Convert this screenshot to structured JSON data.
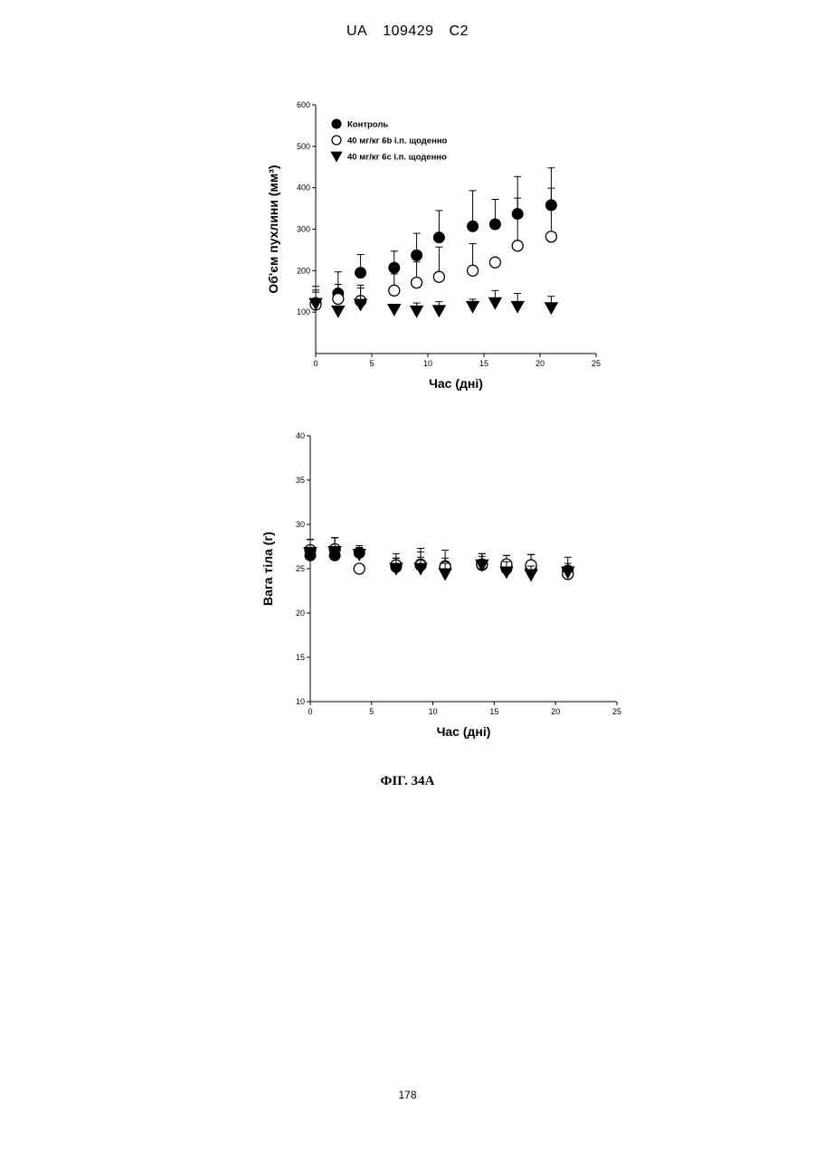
{
  "header": {
    "office": "UA",
    "number": "109429",
    "kind": "C2"
  },
  "figure_caption": "ФІГ. 34А",
  "page_number": "178",
  "chart_data": [
    {
      "type": "scatter",
      "title": "",
      "xlabel": "Час (дні)",
      "ylabel": "Об'єм пухлини (мм³)",
      "xlim": [
        0,
        25
      ],
      "ylim": [
        0,
        600
      ],
      "x_ticks": [
        "0",
        "5",
        "10",
        "15",
        "20",
        "25"
      ],
      "y_ticks": [
        "100",
        "200",
        "300",
        "400",
        "500",
        "600"
      ],
      "grid": false,
      "legend_position": "top-left",
      "series": [
        {
          "name": "Контроль",
          "marker": "filled-circle",
          "x": [
            0,
            2,
            4,
            7,
            9,
            11,
            14,
            16,
            18,
            21
          ],
          "y": [
            122,
            145,
            195,
            207,
            237,
            280,
            307,
            312,
            337,
            358
          ],
          "err": [
            40,
            52,
            44,
            40,
            53,
            65,
            86,
            60,
            90,
            90
          ]
        },
        {
          "name": "40 мг/кг 6b i.п. щоденно",
          "marker": "open-circle",
          "x": [
            0,
            2,
            4,
            7,
            9,
            11,
            14,
            16,
            18,
            21
          ],
          "y": [
            118,
            132,
            127,
            152,
            171,
            185,
            200,
            220,
            260,
            282
          ],
          "err": [
            35,
            35,
            38,
            40,
            50,
            72,
            65,
            0,
            115,
            117
          ]
        },
        {
          "name": "40 мг/кг 6c i.п. щоденно",
          "marker": "filled-triangle-down",
          "x": [
            0,
            2,
            4,
            7,
            9,
            11,
            14,
            16,
            18,
            21
          ],
          "y": [
            120,
            102,
            118,
            106,
            102,
            103,
            113,
            122,
            113,
            110
          ],
          "err": [
            28,
            0,
            40,
            0,
            20,
            22,
            18,
            30,
            32,
            28
          ]
        }
      ]
    },
    {
      "type": "scatter",
      "title": "",
      "xlabel": "Час (дні)",
      "ylabel": "Вага тіла (г)",
      "xlim": [
        0,
        25
      ],
      "ylim": [
        10,
        40
      ],
      "x_ticks": [
        "0",
        "5",
        "10",
        "15",
        "20",
        "25"
      ],
      "y_ticks": [
        "10",
        "15",
        "20",
        "25",
        "30",
        "35",
        "40"
      ],
      "grid": false,
      "series": [
        {
          "marker": "filled-circle",
          "x": [
            0,
            2,
            4,
            7,
            9,
            11,
            14,
            16,
            18,
            21
          ],
          "y": [
            26.5,
            26.5,
            26.8,
            25.2,
            25.5,
            25.3,
            25.4,
            25.0,
            25.1,
            24.8
          ],
          "err": [
            1.8,
            2.0,
            0.8,
            1.5,
            1.8,
            1.8,
            1.3,
            1.5,
            1.5,
            1.5
          ]
        },
        {
          "marker": "open-circle",
          "x": [
            0,
            2,
            4,
            7,
            9,
            11,
            14,
            16,
            18,
            21
          ],
          "y": [
            27.1,
            27.2,
            25.0,
            25.4,
            25.4,
            25.2,
            25.5,
            25.5,
            25.4,
            24.4
          ],
          "err": [
            1.2,
            1.3,
            0.5,
            0.8,
            1.5,
            1.0,
            1.2,
            1.0,
            1.2,
            0.8
          ]
        },
        {
          "marker": "filled-triangle-down",
          "x": [
            0,
            2,
            4,
            7,
            9,
            11,
            14,
            16,
            18,
            21
          ],
          "y": [
            26.8,
            26.9,
            26.6,
            25.0,
            25.0,
            24.4,
            25.4,
            24.6,
            24.3,
            24.6
          ],
          "err": [
            1.5,
            1.6,
            0.8,
            1.2,
            1.3,
            1.2,
            1.0,
            1.2,
            1.0,
            1.0
          ]
        }
      ]
    }
  ]
}
